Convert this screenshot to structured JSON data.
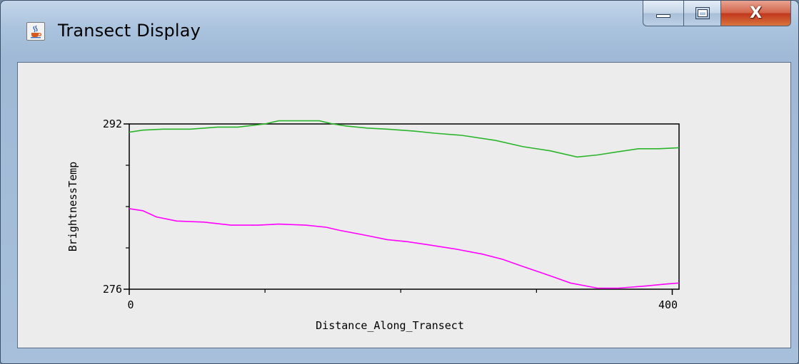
{
  "window": {
    "title": "Transect Display",
    "icon": "java-cup-icon"
  },
  "caption_buttons": {
    "minimize_icon": "minimize-icon",
    "maximize_icon": "maximize-icon",
    "close_glyph": "X"
  },
  "colors": {
    "series_green": "#2bb52b",
    "series_magenta": "#ff00ff",
    "plot_background": "#ececec"
  },
  "chart_data": {
    "type": "line",
    "xlabel": "Distance_Along_Transect",
    "ylabel": "BrightnessTemp",
    "xlim": [
      0,
      405
    ],
    "ylim": [
      276,
      292
    ],
    "x_tick_labels": [
      {
        "value": 0,
        "label": "0"
      },
      {
        "value": 400,
        "label": "400"
      }
    ],
    "y_tick_labels": [
      {
        "value": 292,
        "label": "292"
      },
      {
        "value": 276,
        "label": "276"
      }
    ],
    "x_minor_ticks": [
      100,
      200,
      300
    ],
    "y_minor_ticks": [
      288,
      284,
      280
    ],
    "grid": false,
    "legend": "none",
    "series": [
      {
        "color": "#2bb52b",
        "x": [
          0,
          10,
          25,
          45,
          65,
          80,
          100,
          110,
          125,
          140,
          150,
          160,
          175,
          190,
          210,
          225,
          245,
          270,
          290,
          310,
          330,
          345,
          360,
          375,
          390,
          405
        ],
        "y": [
          291.2,
          291.4,
          291.5,
          291.5,
          291.7,
          291.7,
          292.0,
          292.3,
          292.3,
          292.3,
          292.0,
          291.8,
          291.6,
          291.5,
          291.3,
          291.1,
          290.9,
          290.4,
          289.8,
          289.4,
          288.8,
          289.0,
          289.3,
          289.6,
          289.6,
          289.7
        ]
      },
      {
        "color": "#ff00ff",
        "x": [
          0,
          10,
          20,
          35,
          55,
          75,
          95,
          110,
          130,
          145,
          155,
          175,
          190,
          205,
          220,
          240,
          260,
          275,
          290,
          310,
          325,
          345,
          360,
          380,
          395,
          405
        ],
        "y": [
          283.8,
          283.6,
          283.0,
          282.6,
          282.5,
          282.2,
          282.2,
          282.3,
          282.2,
          282.0,
          281.7,
          281.2,
          280.8,
          280.6,
          280.3,
          279.9,
          279.4,
          278.9,
          278.2,
          277.3,
          276.6,
          276.1,
          276.1,
          276.3,
          276.5,
          276.6
        ]
      }
    ]
  }
}
